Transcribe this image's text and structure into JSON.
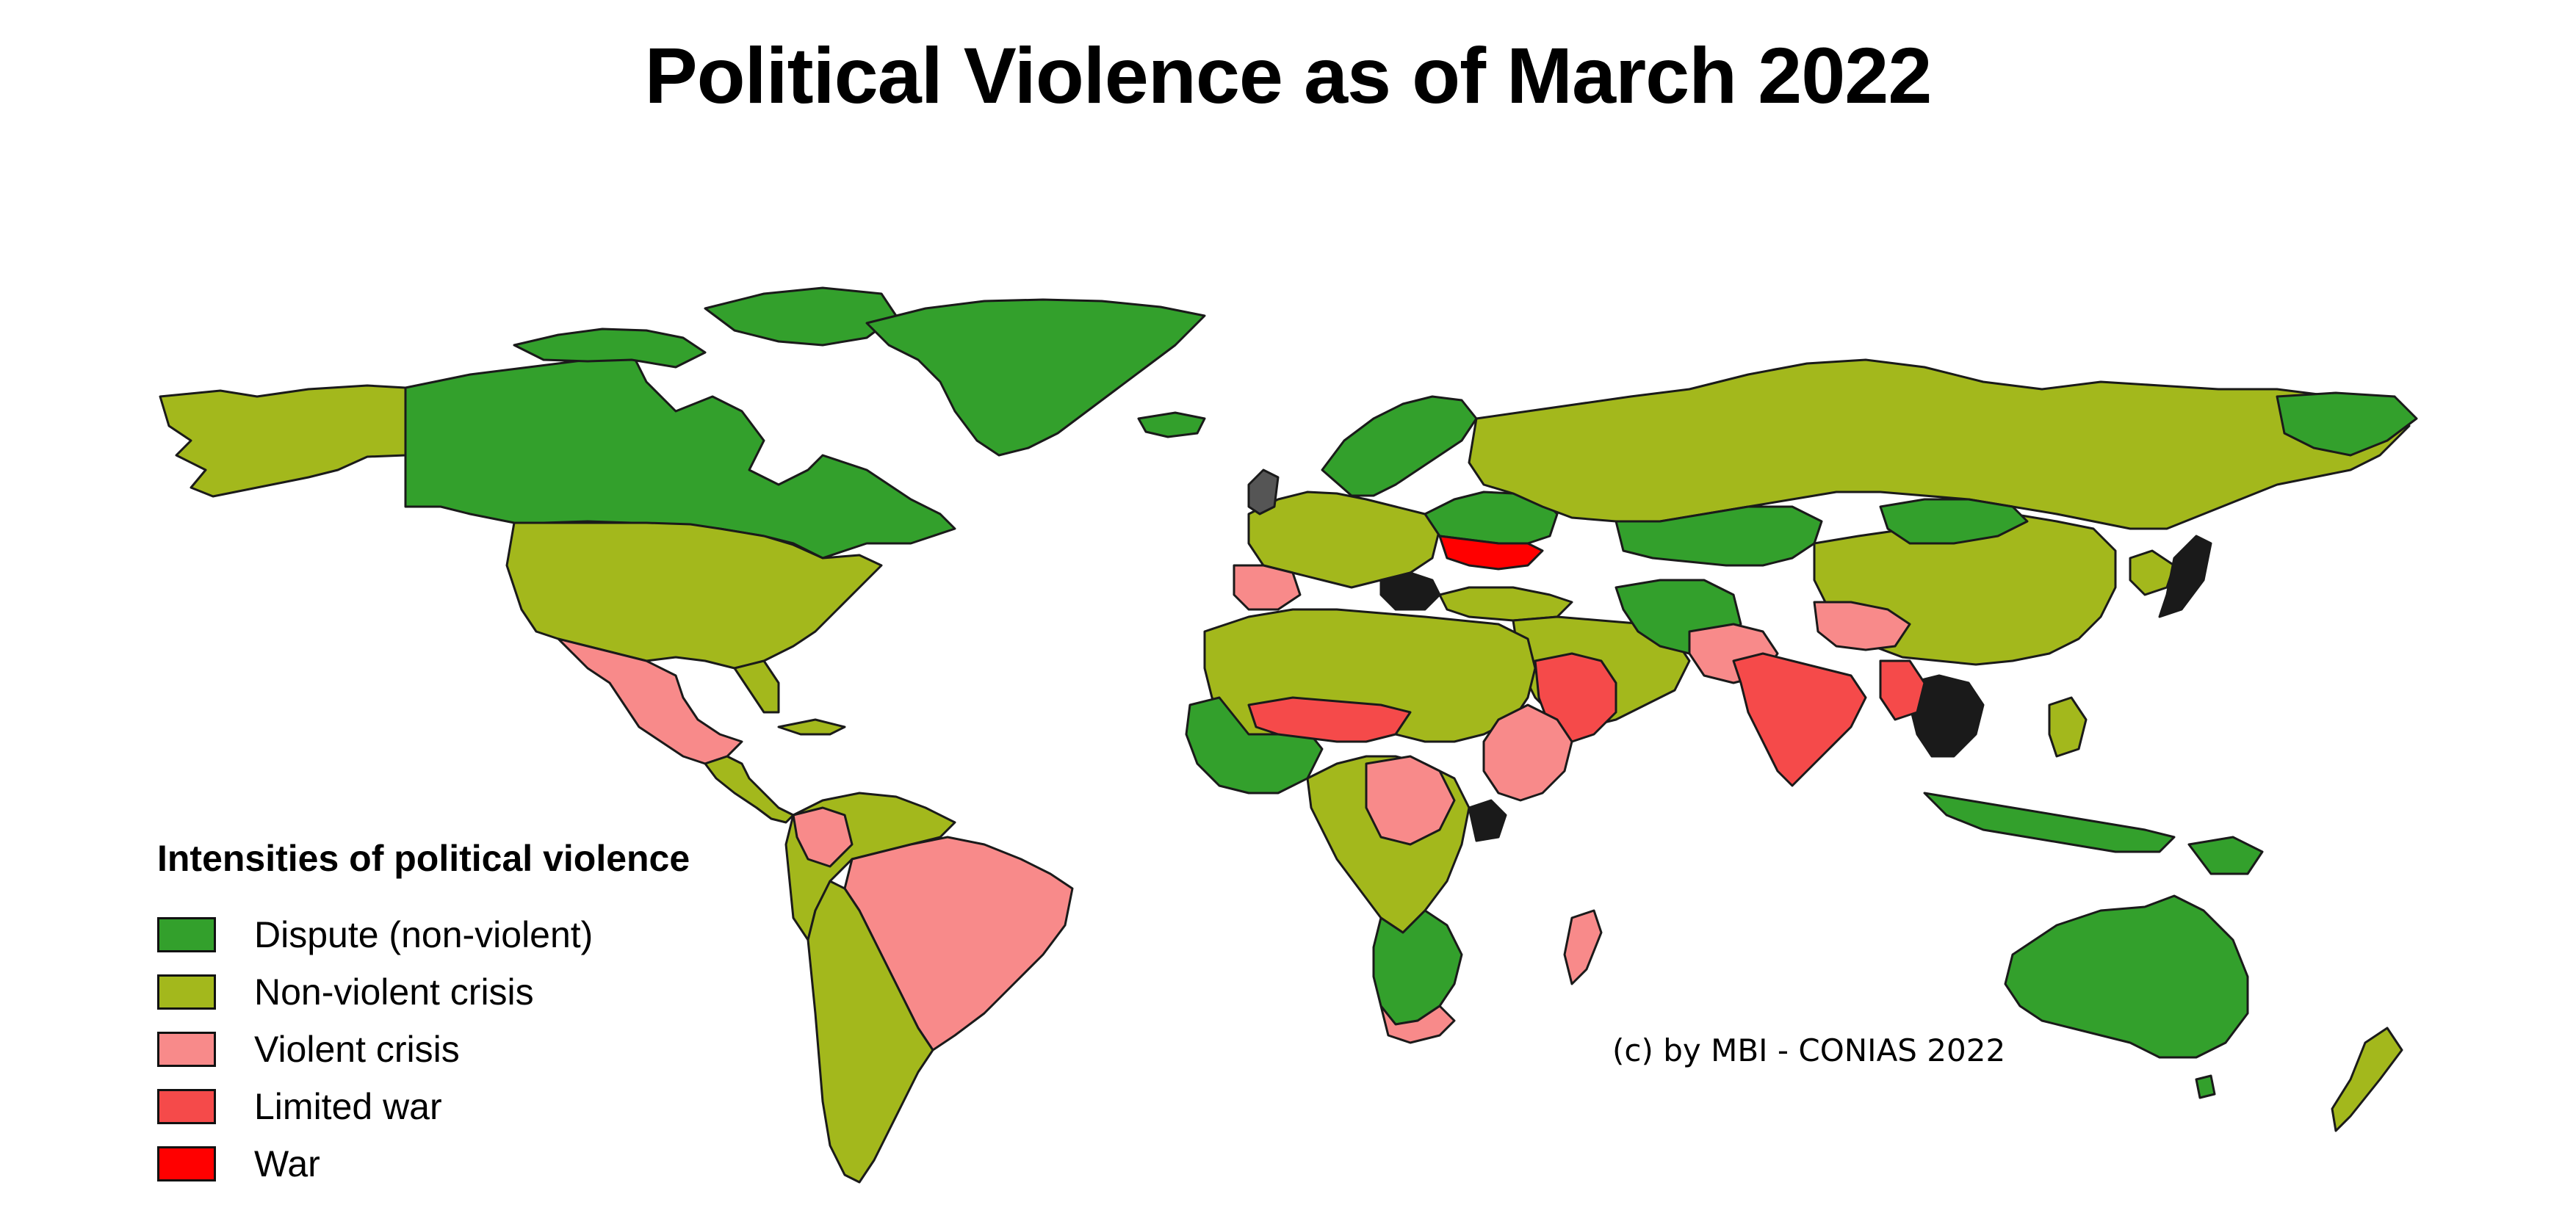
{
  "title": "Political Violence as of March 2022",
  "legend": {
    "title": "Intensities of political violence",
    "items": [
      {
        "label": "Dispute (non-violent)",
        "color": "#33a02c"
      },
      {
        "label": "Non-violent crisis",
        "color": "#a3b81c"
      },
      {
        "label": "Violent crisis",
        "color": "#f88a8a"
      },
      {
        "label": "Limited war",
        "color": "#f54a4a"
      },
      {
        "label": "War",
        "color": "#ff0000"
      }
    ]
  },
  "credit": "(c) by MBI - CONIAS 2022",
  "colors": {
    "background": "#ffffff",
    "border": "#1a1a1a"
  }
}
